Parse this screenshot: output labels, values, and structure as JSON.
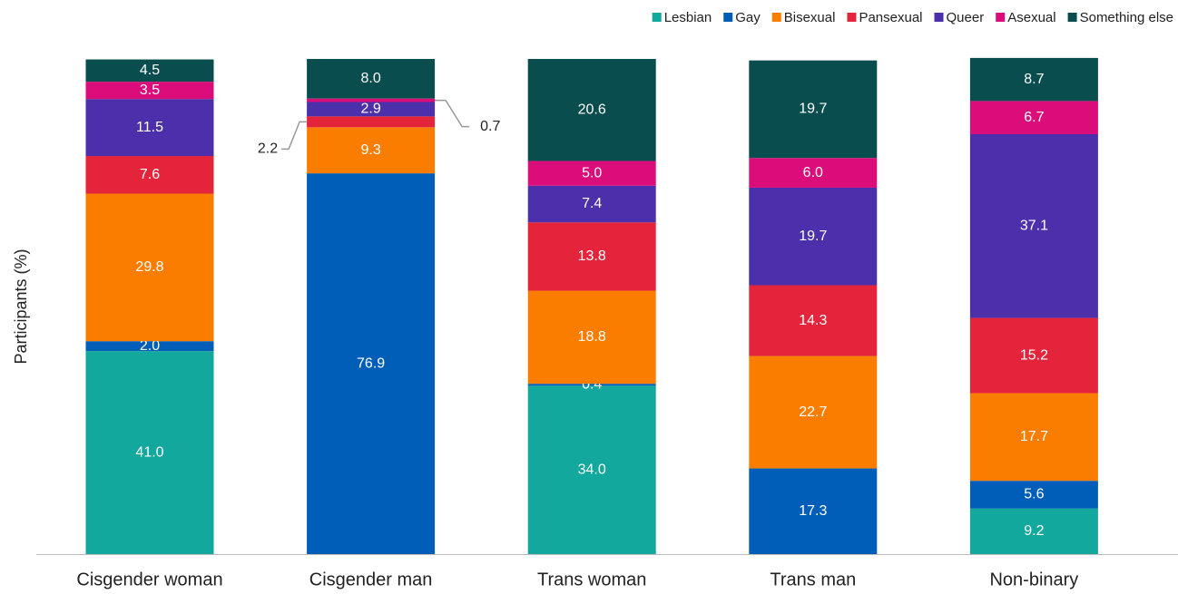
{
  "chart_data": {
    "type": "stacked_bar",
    "y_label": "Participants (%)",
    "categories": [
      "Cisgender woman",
      "Cisgender man",
      "Trans woman",
      "Trans man",
      "Non-binary"
    ],
    "ylim": [
      0,
      100
    ],
    "legend": "top-right",
    "series": [
      {
        "name": "Lesbian",
        "color": "#13a89e",
        "values": [
          41.0,
          null,
          34.0,
          null,
          9.2
        ],
        "value_labels": [
          "41.0",
          null,
          "34.0",
          null,
          "9.2"
        ]
      },
      {
        "name": "Gay",
        "color": "#005eb8",
        "values": [
          2.0,
          76.9,
          0.4,
          17.3,
          5.6
        ],
        "value_labels": [
          "2.0",
          "76.9",
          "0.4",
          "17.3",
          "5.6"
        ]
      },
      {
        "name": "Bisexual",
        "color": "#fa7d00",
        "values": [
          29.8,
          9.3,
          18.8,
          22.7,
          17.7
        ],
        "value_labels": [
          "29.8",
          "9.3",
          "18.8",
          "22.7",
          "17.7"
        ]
      },
      {
        "name": "Pansexual",
        "color": "#e3243b",
        "values": [
          7.6,
          2.2,
          13.8,
          14.3,
          15.2
        ],
        "value_labels": [
          "7.6",
          "2.2",
          "13.8",
          "14.3",
          "15.2"
        ]
      },
      {
        "name": "Queer",
        "color": "#4b2fab",
        "values": [
          11.5,
          2.9,
          7.4,
          19.7,
          37.1
        ],
        "value_labels": [
          "11.5",
          "2.9",
          "7.4",
          "19.7",
          "37.1"
        ]
      },
      {
        "name": "Asexual",
        "color": "#db0d7b",
        "values": [
          3.5,
          0.7,
          5.0,
          6.0,
          6.7
        ],
        "value_labels": [
          "3.5",
          "0.7",
          "5.0",
          "6.0",
          "6.7"
        ]
      },
      {
        "name": "Something else",
        "color": "#0a4d4f",
        "values": [
          4.5,
          8.0,
          20.6,
          19.7,
          8.7
        ],
        "value_labels": [
          "4.5",
          "8.0",
          "20.6",
          "19.7",
          "8.7"
        ]
      }
    ]
  }
}
